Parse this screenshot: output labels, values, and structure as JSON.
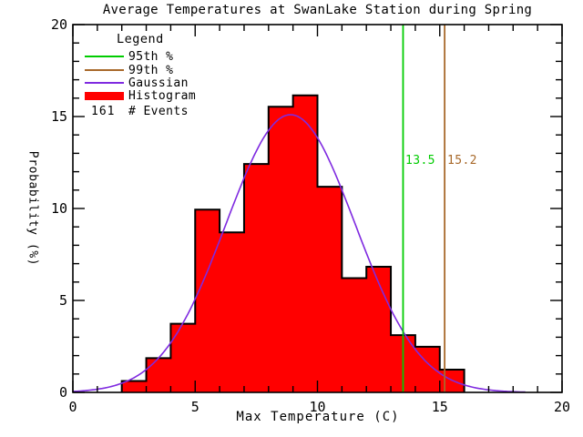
{
  "chart_data": {
    "type": "histogram",
    "title": "Average Temperatures at SwanLake Station during Spring",
    "xlabel": "Max Temperature (C)",
    "ylabel": "Probability (%)",
    "xlim": [
      0,
      20
    ],
    "ylim": [
      0,
      20
    ],
    "x_major_ticks": [
      0,
      5,
      10,
      15,
      20
    ],
    "y_major_ticks": [
      0,
      5,
      10,
      15,
      20
    ],
    "minor_tick_step": 1,
    "grid": "off",
    "legend_position": "upper-left",
    "n_events": 161,
    "histogram": {
      "series_name": "Histogram",
      "bin_width": 1,
      "bin_edges": [
        2,
        3,
        4,
        5,
        6,
        7,
        8,
        9,
        10,
        11,
        12,
        13,
        14,
        15,
        16
      ],
      "counts": [
        1,
        3,
        6,
        16,
        14,
        20,
        25,
        26,
        18,
        10,
        11,
        5,
        4,
        2
      ],
      "percent": [
        0.62,
        1.86,
        3.73,
        9.94,
        8.7,
        12.42,
        15.53,
        16.15,
        11.18,
        6.21,
        6.83,
        3.11,
        2.48,
        1.24
      ],
      "fill_color": "#FF0000",
      "outline_color": "#000000"
    },
    "gaussian": {
      "series_name": "Gaussian",
      "amplitude": 15.1,
      "mean": 8.9,
      "sigma": 2.64,
      "x_start": 0,
      "x_end": 18.5,
      "color": "#7F2AE0"
    },
    "percentile_lines": [
      {
        "name": "95th %",
        "value": 13.5,
        "label": "13.5",
        "color": "#00CC00"
      },
      {
        "name": "99th %",
        "value": 15.2,
        "label": "15.2",
        "color": "#A8692B"
      }
    ]
  },
  "legend": {
    "title": "Legend",
    "items": [
      {
        "label": "95th %",
        "swatch": "line",
        "color": "#00CC00"
      },
      {
        "label": "99th %",
        "swatch": "line",
        "color": "#A8692B"
      },
      {
        "label": "Gaussian",
        "swatch": "line",
        "color": "#7F2AE0"
      },
      {
        "label": "Histogram",
        "swatch": "bar",
        "color": "#FF0000"
      },
      {
        "label": "# Events",
        "swatch": "text",
        "text": "161"
      }
    ]
  },
  "colors": {
    "background": "#FFFFFF",
    "axis": "#000000",
    "text": "#000000"
  }
}
